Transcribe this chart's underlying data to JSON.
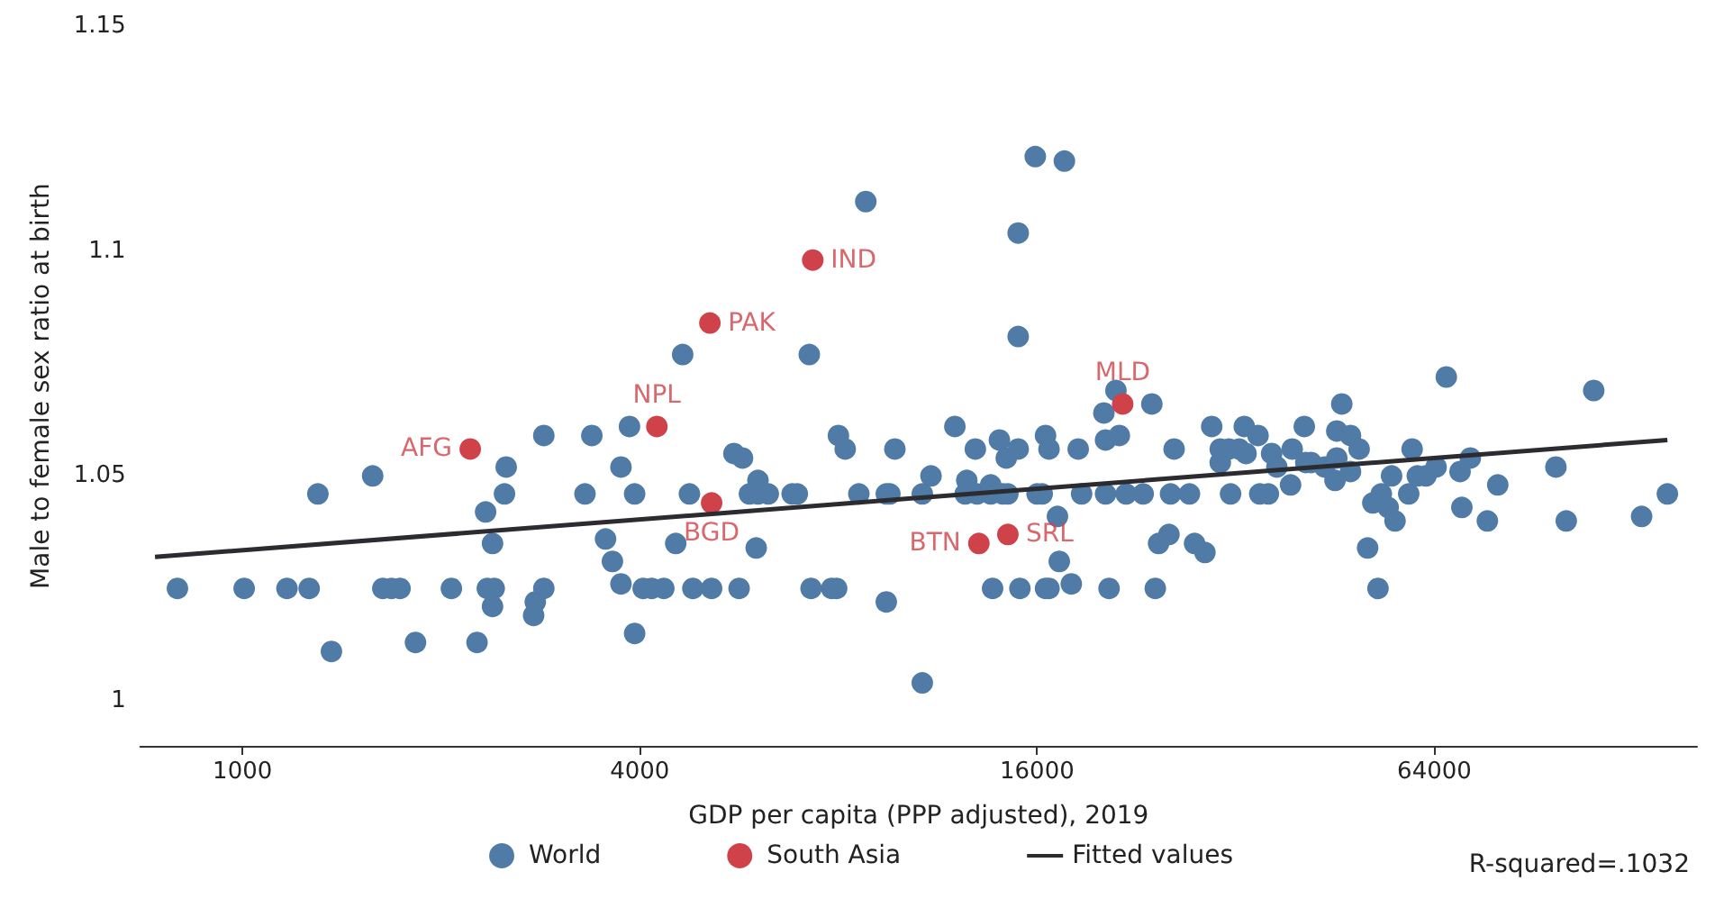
{
  "chart_data": {
    "type": "scatter",
    "xlabel": "GDP per capita (PPP adjusted), 2019",
    "ylabel": "Male to female sex ratio at birth",
    "xlim": [
      700,
      160000
    ],
    "xticks": [
      1000,
      4000,
      16000,
      64000
    ],
    "ylim": [
      0.99,
      1.15
    ],
    "yticks": [
      1,
      1.05,
      1.1,
      1.15
    ],
    "log": "x",
    "grid": false,
    "legend": "bottom",
    "marker": "circle",
    "series": [
      {
        "name": "World",
        "color": "#4f7ba6",
        "x": [
          797,
          1006,
          1168,
          1262,
          1301,
          1364,
          1575,
          1632,
          1682,
          1733,
          1829,
          2073,
          2267,
          2336,
          2350,
          2407,
          2393,
          2393,
          2495,
          2510,
          2778,
          2762,
          2862,
          2862,
          3304,
          3384,
          3550,
          3636,
          3746,
          3746,
          3859,
          3929,
          3929,
          4048,
          4170,
          4350,
          4646,
          4757,
          4535,
          4814,
          5140,
          5657,
          5556,
          5725,
          6042,
          5865,
          6042,
          6263,
          6005,
          6808,
          6931,
          7227,
          7272,
          7813,
          7951,
          8000,
          8192,
          8802,
          8591,
          9455,
          9573,
          9742,
          9455,
          10720,
          10720,
          11050,
          12010,
          12520,
          12450,
          12980,
          12900,
          13610,
          13610,
          14200,
          14450,
          14030,
          14370,
          14980,
          14980,
          14980,
          15900,
          17600,
          13700,
          15070,
          16480,
          16680,
          18030,
          16480,
          16680,
          16000,
          16290,
          17180,
          17290,
          18470,
          18690,
          20200,
          20320,
          21320,
          21070,
          23880,
          20320,
          21830,
          23170,
          20570,
          24170,
          24450,
          25350,
          27720,
          28740,
          25810,
          25490,
          27230,
          29430,
          30320,
          31250,
          32380,
          30320,
          32970,
          34590,
          33170,
          36270,
          31430,
          34800,
          35860,
          36940,
          38970,
          38750,
          40650,
          40870,
          41620,
          43650,
          45530,
          47760,
          46330,
          45530,
          47760,
          49220,
          45250,
          50700,
          52570,
          51630,
          53180,
          54470,
          55790,
          55120,
          59220,
          58520,
          60300,
          62130,
          64380,
          66720,
          70000,
          72550,
          70440,
          77000,
          79840,
          97800,
          101400,
          111600,
          131900,
          144300
        ],
        "values": [
          1.025,
          1.025,
          1.025,
          1.025,
          1.046,
          1.011,
          1.05,
          1.025,
          1.025,
          1.025,
          1.013,
          1.025,
          1.013,
          1.042,
          1.025,
          1.025,
          1.035,
          1.021,
          1.046,
          1.052,
          1.022,
          1.019,
          1.025,
          1.059,
          1.046,
          1.059,
          1.036,
          1.031,
          1.052,
          1.026,
          1.061,
          1.046,
          1.015,
          1.025,
          1.025,
          1.025,
          1.077,
          1.046,
          1.035,
          1.025,
          1.025,
          1.025,
          1.055,
          1.054,
          1.049,
          1.046,
          1.046,
          1.046,
          1.034,
          1.046,
          1.046,
          1.077,
          1.025,
          1.025,
          1.025,
          1.059,
          1.056,
          1.111,
          1.046,
          1.046,
          1.046,
          1.056,
          1.022,
          1.004,
          1.046,
          1.05,
          1.061,
          1.049,
          1.046,
          1.046,
          1.056,
          1.048,
          1.046,
          1.046,
          1.046,
          1.058,
          1.054,
          1.056,
          1.104,
          1.081,
          1.121,
          1.12,
          1.025,
          1.025,
          1.025,
          1.025,
          1.026,
          1.059,
          1.056,
          1.046,
          1.046,
          1.041,
          1.031,
          1.056,
          1.046,
          1.064,
          1.058,
          1.059,
          1.069,
          1.066,
          1.046,
          1.046,
          1.046,
          1.025,
          1.025,
          1.035,
          1.037,
          1.035,
          1.033,
          1.056,
          1.046,
          1.046,
          1.061,
          1.056,
          1.056,
          1.056,
          1.053,
          1.061,
          1.059,
          1.055,
          1.055,
          1.046,
          1.046,
          1.046,
          1.052,
          1.056,
          1.048,
          1.061,
          1.053,
          1.053,
          1.052,
          1.06,
          1.059,
          1.066,
          1.054,
          1.051,
          1.056,
          1.049,
          1.034,
          1.025,
          1.044,
          1.046,
          1.043,
          1.04,
          1.05,
          1.056,
          1.046,
          1.05,
          1.05,
          1.052,
          1.072,
          1.051,
          1.054,
          1.043,
          1.04,
          1.048,
          1.052,
          1.04,
          1.069,
          1.041,
          1.046
        ]
      },
      {
        "name": "South Asia",
        "color": "#cf4249",
        "x": [
          2214,
          4246,
          5109,
          7315,
          5140,
          13060,
          14450,
          21570
        ],
        "values": [
          1.056,
          1.061,
          1.084,
          1.098,
          1.044,
          1.035,
          1.037,
          1.066
        ]
      },
      {
        "name": "Fitted values",
        "type": "line",
        "marker": "none",
        "color": "#2b2b30",
        "x": [
          737,
          144300
        ],
        "values": [
          1.032,
          1.058
        ]
      }
    ],
    "annotations": [
      {
        "text": "AFG",
        "x": 2214,
        "y": 1.056
      },
      {
        "text": "NPL",
        "x": 4246,
        "y": 1.061
      },
      {
        "text": "PAK",
        "x": 5109,
        "y": 1.084
      },
      {
        "text": "IND",
        "x": 7315,
        "y": 1.098
      },
      {
        "text": "BGD",
        "x": 5140,
        "y": 1.044
      },
      {
        "text": "BTN",
        "x": 13060,
        "y": 1.035
      },
      {
        "text": "SRL",
        "x": 14450,
        "y": 1.037
      },
      {
        "text": "MLD",
        "x": 21570,
        "y": 1.066
      },
      "R-squared=.1032"
    ]
  }
}
